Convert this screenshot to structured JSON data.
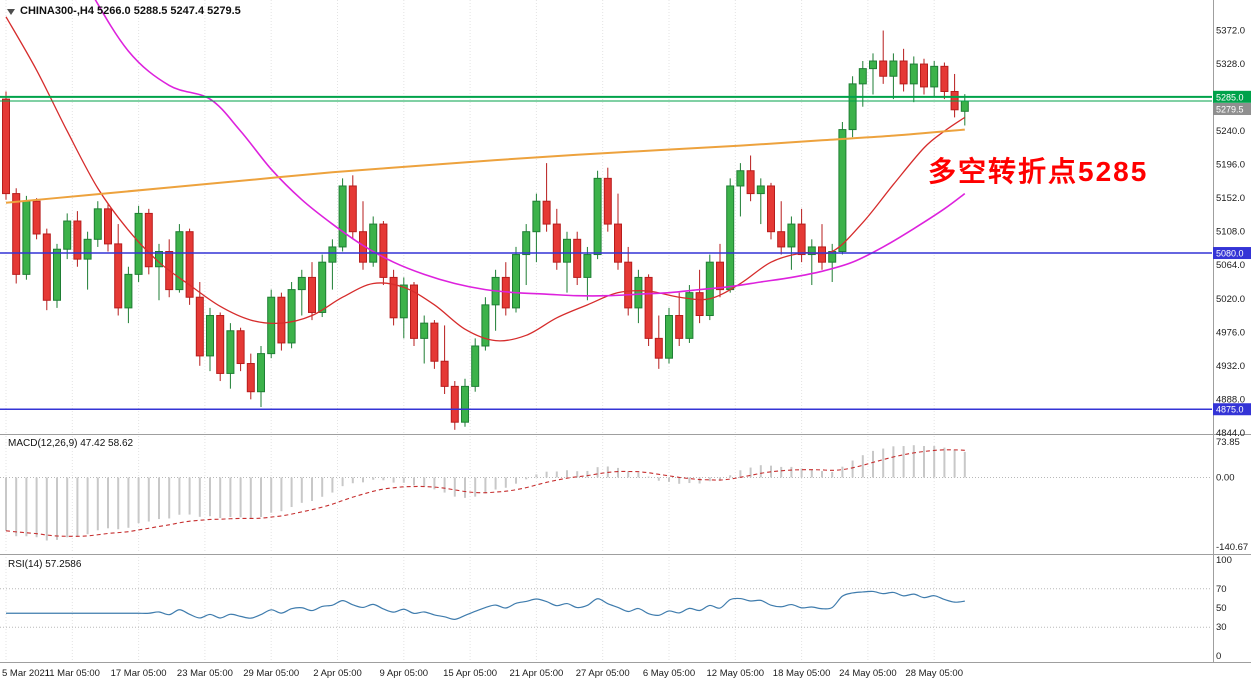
{
  "header": {
    "display": "CHINA300-,H4 5266.0 5288.5 5247.4 5279.5",
    "symbol": "CHINA300-",
    "timeframe": "H4",
    "open": "5266.0",
    "high": "5288.5",
    "low": "5247.4",
    "close": "5279.5"
  },
  "annotation": {
    "text": "多空转折点5285",
    "color": "#ff0000"
  },
  "indicators": {
    "macd": {
      "display": "MACD(12,26,9) 47.42 58.62",
      "name": "MACD",
      "params": "12,26,9",
      "main_value": "47.42",
      "signal_value": "58.62",
      "axis_labels": [
        "73.85",
        "0.00",
        "-140.67"
      ]
    },
    "rsi": {
      "display": "RSI(14) 57.2586",
      "name": "RSI",
      "period": "14",
      "value": "57.2586",
      "axis_labels": [
        "100",
        "70",
        "50",
        "30",
        "0"
      ]
    }
  },
  "chart_data": {
    "type": "candlestick",
    "title": "CHINA300-,H4",
    "symbol": "CHINA300-",
    "timeframe": "H4",
    "price_range": [
      4844,
      5372
    ],
    "grid": "vertical-dotted",
    "legend_position": "top-left",
    "current_bar": {
      "open": 5266.0,
      "high": 5288.5,
      "low": 5247.4,
      "close": 5279.5
    },
    "current_price": 5279.5,
    "colors": {
      "up": "#3cb24a",
      "up_border": "#1e7e34",
      "down": "#e53935",
      "down_border": "#b71c1c",
      "grid": "#e3e3e3",
      "separator": "#9f9f9f",
      "axis_text": "#1a1a1a",
      "macd_hist": "#c8c8c8",
      "macd_signal": "#c62f2f",
      "rsi": "#3f7cad",
      "level_green": "#00a24a",
      "level_blue": "#3434d6",
      "bid_badge": "#8f8f8f"
    },
    "price_ticks": [
      {
        "label": "5372.0",
        "value": 5372
      },
      {
        "label": "5328.0",
        "value": 5328
      },
      {
        "label": "5240.0",
        "value": 5240
      },
      {
        "label": "5196.0",
        "value": 5196
      },
      {
        "label": "5152.0",
        "value": 5152
      },
      {
        "label": "5108.0",
        "value": 5108
      },
      {
        "label": "5064.0",
        "value": 5064
      },
      {
        "label": "5020.0",
        "value": 5020
      },
      {
        "label": "4976.0",
        "value": 4976
      },
      {
        "label": "4932.0",
        "value": 4932
      },
      {
        "label": "4888.0",
        "value": 4888
      },
      {
        "label": "4844.0",
        "value": 4844
      }
    ],
    "badges": [
      {
        "label": "5285.0",
        "price": 5285.0,
        "bg": "#00a24a",
        "dy": 0
      },
      {
        "label": "5279.5",
        "price": 5279.5,
        "bg": "#8f8f8f",
        "dy": 8
      },
      {
        "label": "5080.0",
        "price": 5080.0,
        "bg": "#3434d6",
        "dy": 0
      },
      {
        "label": "4875.0",
        "price": 4875.0,
        "bg": "#3434d6",
        "dy": 0
      }
    ],
    "levels": [
      {
        "name": "resistance-line-5285",
        "price": 5285.0,
        "color": "#00a24a",
        "width": 2,
        "interactable": "true"
      },
      {
        "name": "bid-price-line",
        "price": 5279.5,
        "color": "#00a24a",
        "width": 1,
        "interactable": "false"
      },
      {
        "name": "support-line-5080",
        "price": 5080.0,
        "color": "#3434d6",
        "width": 1.5,
        "interactable": "true"
      },
      {
        "name": "support-line-4875",
        "price": 4875.0,
        "color": "#3434d6",
        "width": 1.5,
        "interactable": "true"
      }
    ],
    "x_ticks": [
      {
        "label": "5 Mar 2021",
        "i": 0
      },
      {
        "label": "11 Mar 05:00",
        "i": 6.5
      },
      {
        "label": "17 Mar 05:00",
        "i": 13
      },
      {
        "label": "23 Mar 05:00",
        "i": 19.5
      },
      {
        "label": "29 Mar 05:00",
        "i": 26
      },
      {
        "label": "2 Apr 05:00",
        "i": 32.5
      },
      {
        "label": "9 Apr 05:00",
        "i": 39
      },
      {
        "label": "15 Apr 05:00",
        "i": 45.5
      },
      {
        "label": "21 Apr 05:00",
        "i": 52
      },
      {
        "label": "27 Apr 05:00",
        "i": 58.5
      },
      {
        "label": "6 May 05:00",
        "i": 65
      },
      {
        "label": "12 May 05:00",
        "i": 71.5
      },
      {
        "label": "18 May 05:00",
        "i": 78
      },
      {
        "label": "24 May 05:00",
        "i": 84.5
      },
      {
        "label": "28 May 05:00",
        "i": 91
      }
    ],
    "candles": {
      "open": [
        5282,
        5158,
        5052,
        5148,
        5105,
        5018,
        5085,
        5122,
        5072,
        5098,
        5138,
        5092,
        5008,
        5052,
        5132,
        5062,
        5082,
        5032,
        5108,
        5022,
        4945,
        4998,
        4922,
        4978,
        4935,
        4898,
        4948,
        5022,
        4962,
        5032,
        5048,
        5002,
        5068,
        5088,
        5168,
        5108,
        5068,
        5118,
        5048,
        4995,
        5038,
        4968,
        4988,
        4938,
        4905,
        4858,
        4905,
        4958,
        5012,
        5048,
        5008,
        5078,
        5108,
        5148,
        5118,
        5068,
        5098,
        5048,
        5078,
        5178,
        5118,
        5068,
        5008,
        5048,
        4968,
        4942,
        4998,
        4968,
        5028,
        4998,
        5068,
        5032,
        5168,
        5188,
        5158,
        5168,
        5108,
        5088,
        5118,
        5078,
        5088,
        5068,
        5082,
        5242,
        5302,
        5322,
        5332,
        5312,
        5332,
        5302,
        5328,
        5298,
        5325,
        5292,
        5266
      ],
      "high": [
        5292,
        5165,
        5155,
        5152,
        5112,
        5092,
        5132,
        5135,
        5108,
        5148,
        5145,
        5118,
        5062,
        5142,
        5138,
        5092,
        5098,
        5118,
        5112,
        5042,
        5008,
        5002,
        4988,
        4982,
        4948,
        4958,
        5032,
        5028,
        5042,
        5058,
        5068,
        5078,
        5098,
        5178,
        5182,
        5148,
        5128,
        5122,
        5058,
        5048,
        5042,
        4998,
        4992,
        4985,
        4912,
        4915,
        4968,
        5022,
        5058,
        5068,
        5088,
        5118,
        5158,
        5198,
        5138,
        5108,
        5108,
        5088,
        5188,
        5192,
        5158,
        5088,
        5058,
        5052,
        4998,
        5008,
        5028,
        5038,
        5058,
        5078,
        5092,
        5178,
        5198,
        5208,
        5178,
        5172,
        5148,
        5128,
        5138,
        5098,
        5118,
        5092,
        5252,
        5312,
        5332,
        5342,
        5372,
        5342,
        5348,
        5338,
        5335,
        5332,
        5330,
        5315,
        5288.5
      ],
      "low": [
        5150,
        5040,
        5045,
        5098,
        5005,
        5008,
        5072,
        5062,
        5032,
        5088,
        5082,
        4998,
        4988,
        5042,
        5052,
        5018,
        5022,
        5028,
        5012,
        4932,
        4925,
        4912,
        4902,
        4925,
        4888,
        4878,
        4942,
        4952,
        4955,
        4998,
        4992,
        4996,
        5032,
        5082,
        5098,
        5058,
        5062,
        5038,
        4985,
        4968,
        4958,
        4935,
        4928,
        4895,
        4848,
        4852,
        4898,
        4952,
        4978,
        4998,
        5002,
        5038,
        5068,
        5108,
        5058,
        5028,
        5038,
        5018,
        5072,
        5108,
        5058,
        4998,
        4988,
        4958,
        4928,
        4935,
        4958,
        4962,
        4988,
        4992,
        5022,
        5028,
        5128,
        5148,
        5118,
        5098,
        5078,
        5058,
        5068,
        5038,
        5058,
        5042,
        5078,
        5232,
        5272,
        5288,
        5302,
        5282,
        5292,
        5278,
        5288,
        5285,
        5282,
        5258,
        5247.4
      ],
      "close": [
        5158,
        5052,
        5148,
        5105,
        5018,
        5085,
        5122,
        5072,
        5098,
        5138,
        5092,
        5008,
        5052,
        5132,
        5062,
        5082,
        5032,
        5108,
        5022,
        4945,
        4998,
        4922,
        4978,
        4935,
        4898,
        4948,
        5022,
        4962,
        5032,
        5048,
        5002,
        5068,
        5088,
        5168,
        5108,
        5068,
        5118,
        5048,
        4995,
        5038,
        4968,
        4988,
        4938,
        4905,
        4858,
        4905,
        4958,
        5012,
        5048,
        5008,
        5078,
        5108,
        5148,
        5118,
        5068,
        5098,
        5048,
        5078,
        5178,
        5118,
        5068,
        5008,
        5048,
        4968,
        4942,
        4998,
        4968,
        5028,
        4998,
        5068,
        5032,
        5168,
        5188,
        5158,
        5168,
        5108,
        5088,
        5118,
        5078,
        5088,
        5068,
        5082,
        5242,
        5302,
        5322,
        5332,
        5312,
        5332,
        5302,
        5328,
        5298,
        5325,
        5292,
        5268,
        5279.5
      ]
    },
    "moving_averages": [
      {
        "name": "ma-fast-red-line",
        "color": "#d62c2c",
        "width": 1.3,
        "points": [
          [
            0,
            5390
          ],
          [
            3,
            5320
          ],
          [
            6,
            5240
          ],
          [
            9,
            5165
          ],
          [
            12,
            5110
          ],
          [
            15,
            5068
          ],
          [
            18,
            5038
          ],
          [
            21,
            5010
          ],
          [
            24,
            4992
          ],
          [
            27,
            4988
          ],
          [
            30,
            4998
          ],
          [
            33,
            5022
          ],
          [
            36,
            5040
          ],
          [
            39,
            5035
          ],
          [
            42,
            5012
          ],
          [
            45,
            4980
          ],
          [
            48,
            4965
          ],
          [
            51,
            4972
          ],
          [
            54,
            4995
          ],
          [
            57,
            5012
          ],
          [
            60,
            5028
          ],
          [
            63,
            5030
          ],
          [
            66,
            5022
          ],
          [
            69,
            5020
          ],
          [
            72,
            5040
          ],
          [
            75,
            5068
          ],
          [
            78,
            5080
          ],
          [
            81,
            5082
          ],
          [
            84,
            5120
          ],
          [
            87,
            5170
          ],
          [
            90,
            5218
          ],
          [
            92,
            5240
          ],
          [
            94,
            5258
          ]
        ]
      },
      {
        "name": "ma-slow-magenta-line",
        "color": "#dd22dd",
        "width": 1.6,
        "points": [
          [
            0,
            5640
          ],
          [
            4,
            5530
          ],
          [
            8,
            5430
          ],
          [
            12,
            5345
          ],
          [
            16,
            5300
          ],
          [
            20,
            5282
          ],
          [
            23,
            5240
          ],
          [
            26,
            5190
          ],
          [
            29,
            5150
          ],
          [
            32,
            5118
          ],
          [
            35,
            5090
          ],
          [
            38,
            5068
          ],
          [
            41,
            5052
          ],
          [
            44,
            5040
          ],
          [
            47,
            5032
          ],
          [
            50,
            5028
          ],
          [
            53,
            5026
          ],
          [
            56,
            5024
          ],
          [
            59,
            5024
          ],
          [
            62,
            5026
          ],
          [
            65,
            5028
          ],
          [
            68,
            5032
          ],
          [
            71,
            5036
          ],
          [
            74,
            5042
          ],
          [
            77,
            5048
          ],
          [
            80,
            5056
          ],
          [
            83,
            5068
          ],
          [
            86,
            5088
          ],
          [
            89,
            5112
          ],
          [
            92,
            5138
          ],
          [
            94,
            5158
          ]
        ]
      },
      {
        "name": "ma-long-orange-line",
        "color": "#eda23d",
        "width": 2,
        "points": [
          [
            0,
            5146
          ],
          [
            8,
            5156
          ],
          [
            16,
            5166
          ],
          [
            24,
            5176
          ],
          [
            32,
            5186
          ],
          [
            40,
            5194
          ],
          [
            48,
            5202
          ],
          [
            56,
            5209
          ],
          [
            64,
            5215
          ],
          [
            72,
            5221
          ],
          [
            80,
            5228
          ],
          [
            87,
            5234
          ],
          [
            94,
            5242
          ]
        ]
      }
    ],
    "macd": {
      "fast": 12,
      "slow": 26,
      "signal": 9
    },
    "rsi": {
      "period": 14,
      "levels": [
        70,
        30
      ]
    }
  }
}
